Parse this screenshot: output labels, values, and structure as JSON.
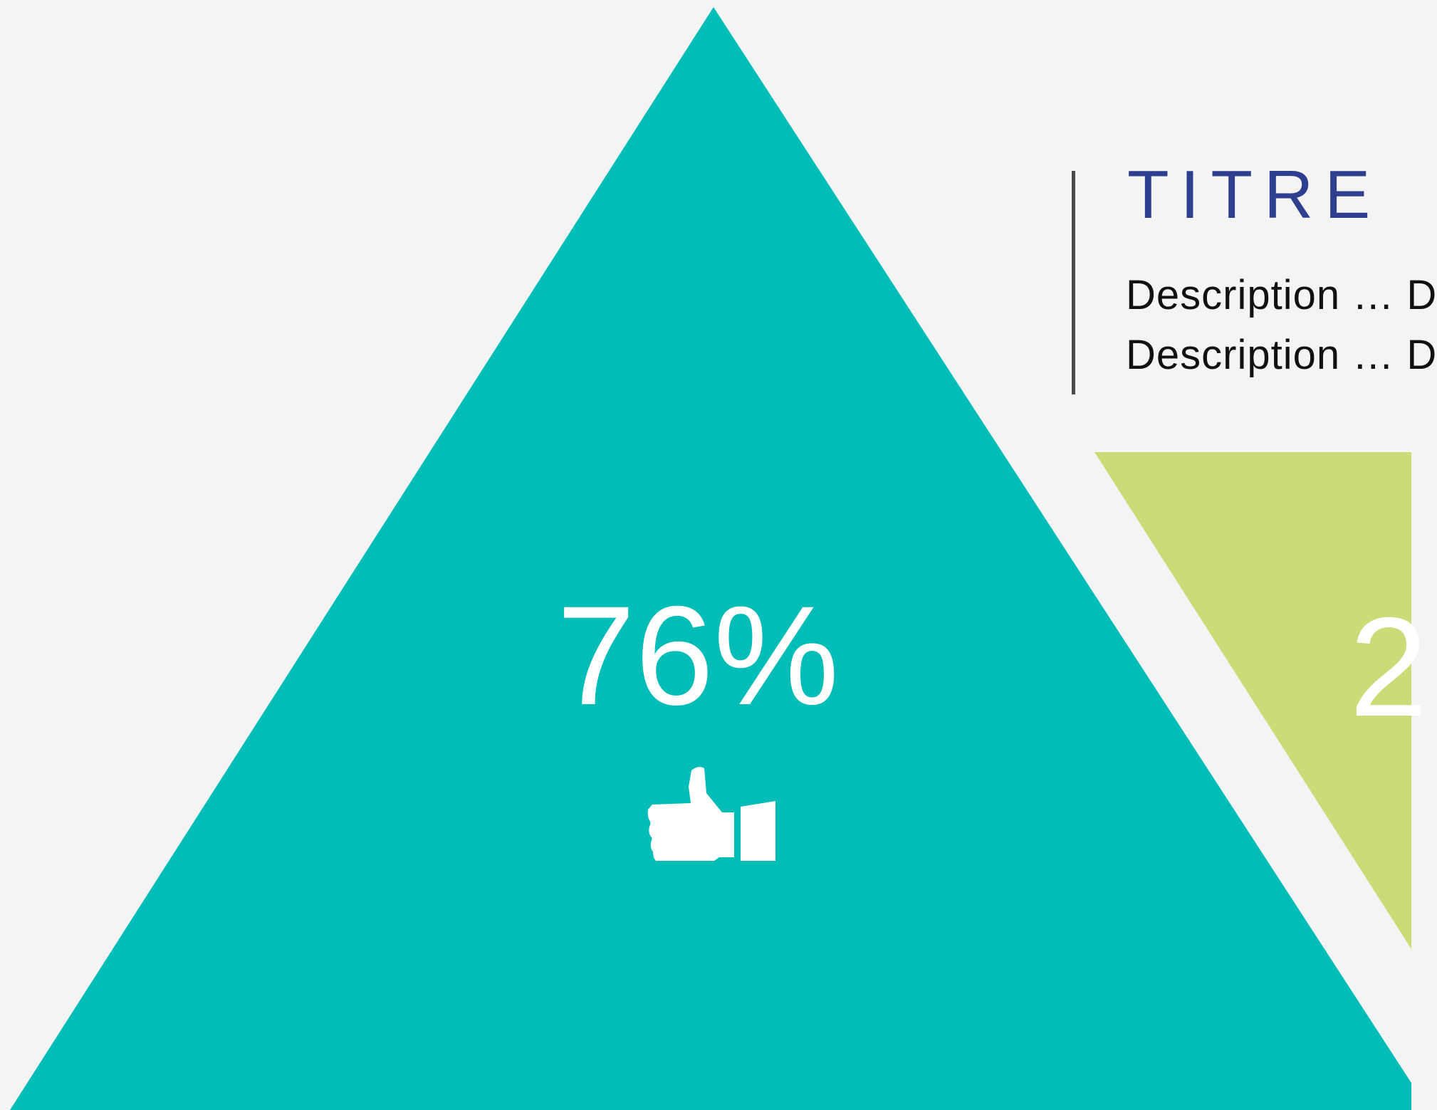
{
  "colors": {
    "background": "#f4f4f4",
    "primary_triangle": "#00bdb8",
    "secondary_triangle": "#cadc77",
    "title": "#2d3f8e",
    "description": "#111111",
    "divider": "#4a4a4a",
    "icon": "#ffffff"
  },
  "main_segment": {
    "value_label": "76%",
    "icon": "thumbs-up-icon"
  },
  "secondary_segment": {
    "value_label": "2"
  },
  "text_block": {
    "title": "TITRE",
    "descriptions": [
      "Description … D",
      "Description … D"
    ]
  }
}
